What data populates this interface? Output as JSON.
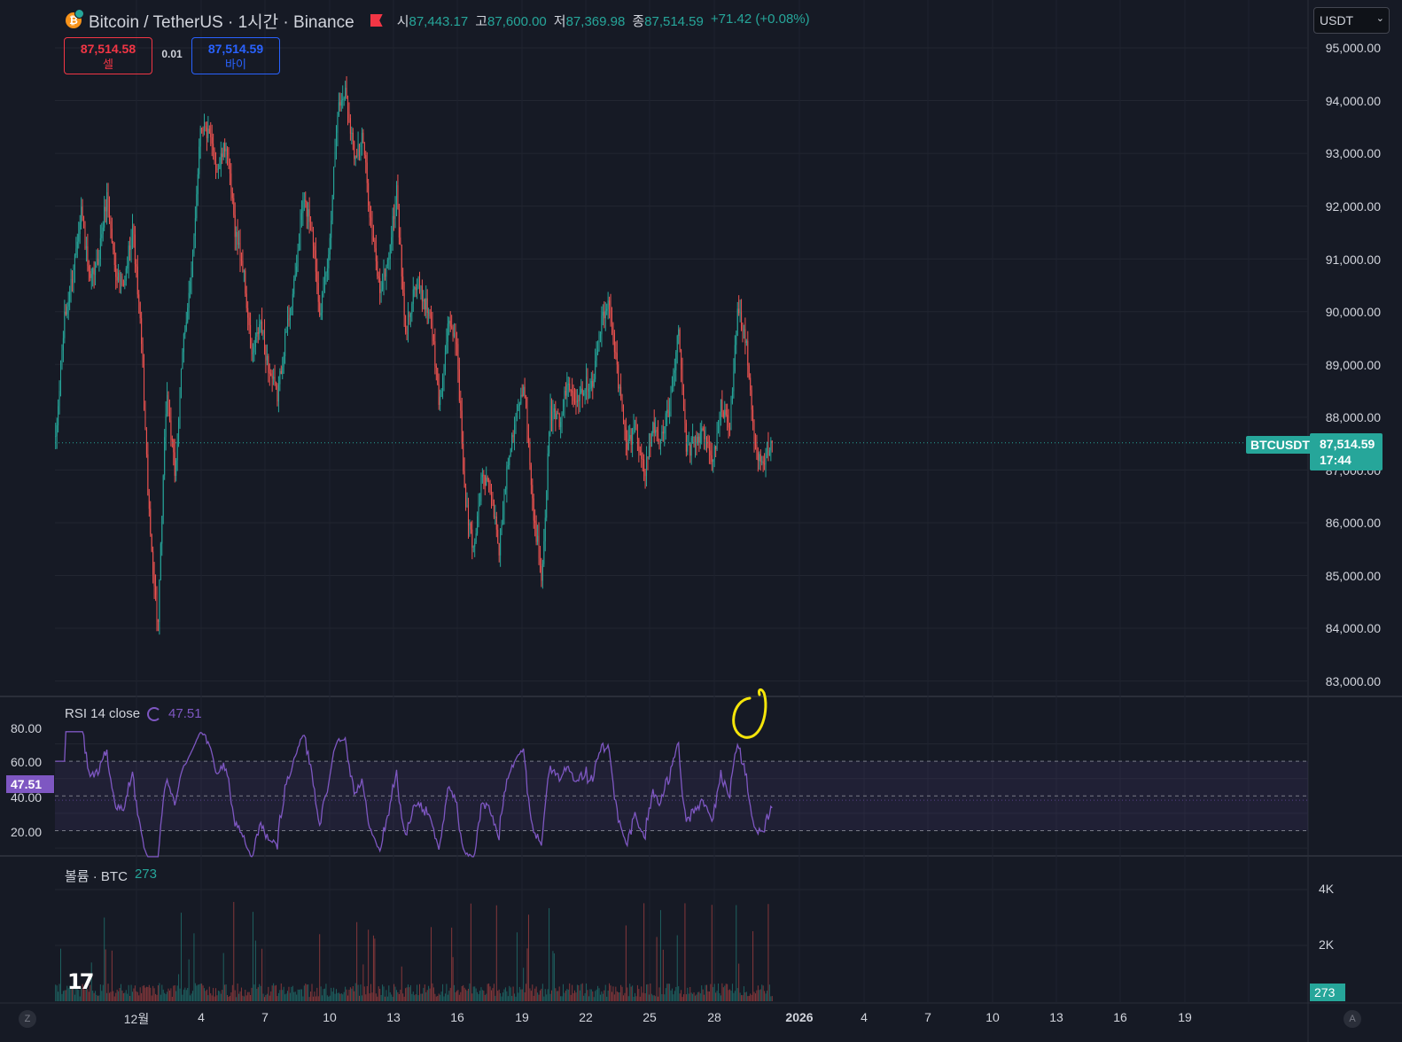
{
  "header": {
    "title": "Bitcoin / TetherUS · 1시간 · Binance",
    "ohlc": [
      {
        "label": "시",
        "value": "87,443.17"
      },
      {
        "label": "고",
        "value": "87,600.00"
      },
      {
        "label": "저",
        "value": "87,369.98"
      },
      {
        "label": "종",
        "value": "87,514.59"
      }
    ],
    "change": "+71.42 (+0.08%)"
  },
  "trade": {
    "sell_price": "87,514.58",
    "sell_label": "셀",
    "spread": "0.01",
    "buy_price": "87,514.59",
    "buy_label": "바이"
  },
  "currency": "USDT",
  "price_axis": [
    "95,000.00",
    "94,000.00",
    "93,000.00",
    "92,000.00",
    "91,000.00",
    "90,000.00",
    "89,000.00",
    "88,000.00",
    "87,000.00",
    "86,000.00",
    "85,000.00",
    "84,000.00",
    "83,000.00"
  ],
  "last_price": {
    "symbol": "BTCUSDT",
    "price": "87,514.59",
    "countdown": "17:44"
  },
  "rsi": {
    "legend": "RSI 14 close",
    "value": "47.51",
    "ticks": [
      "80.00",
      "60.00",
      "40.00",
      "20.00"
    ]
  },
  "volume": {
    "legend": "볼륨 · BTC",
    "value": "273",
    "ticks": [
      "4K",
      "2K"
    ]
  },
  "date_axis": [
    "12월",
    "4",
    "7",
    "10",
    "13",
    "16",
    "19",
    "22",
    "25",
    "28",
    "2026",
    "4",
    "7",
    "10",
    "13",
    "16",
    "19"
  ],
  "corner_buttons": [
    "Z",
    "A"
  ],
  "colors": {
    "up": "#26a69a",
    "down": "#ef5350",
    "rsi": "#7e57c2",
    "annotation": "#f5e50a"
  },
  "chart_data": {
    "type": "candlestick",
    "interval": "1h",
    "ylim": [
      82800,
      95300
    ],
    "anchors": [
      87500,
      89800,
      90700,
      92000,
      90500,
      91000,
      92200,
      90800,
      90400,
      91700,
      89600,
      86000,
      84000,
      88500,
      86900,
      89500,
      90800,
      93600,
      93300,
      92700,
      93200,
      91600,
      90800,
      89100,
      89800,
      88900,
      88400,
      89600,
      90500,
      92100,
      91700,
      90000,
      91000,
      93800,
      94200,
      93000,
      93300,
      91600,
      90400,
      91000,
      92300,
      89500,
      90500,
      90300,
      89900,
      88200,
      89700,
      89500,
      86400,
      85500,
      86900,
      86600,
      85500,
      87200,
      88100,
      88500,
      86200,
      85000,
      88100,
      87900,
      88600,
      88400,
      88600,
      88700,
      89800,
      90200,
      88600,
      87400,
      87900,
      86900,
      87800,
      87600,
      88200,
      89600,
      87300,
      87600,
      87700,
      87100,
      88200,
      87800,
      90100,
      89300,
      87400,
      87200,
      87514
    ],
    "rsi_ylim": [
      10,
      90
    ],
    "rsi_levels": [
      70,
      50,
      30
    ],
    "volume_max": 4500
  }
}
